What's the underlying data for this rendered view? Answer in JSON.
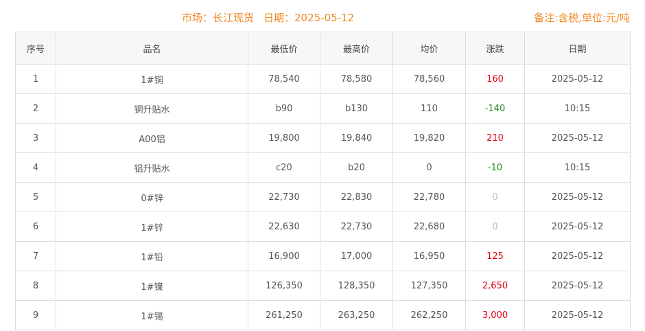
{
  "header": {
    "market": "市场：长江现货",
    "date": "日期：2025-05-12",
    "note": "备注:含税,单位:元/吨"
  },
  "colors": {
    "title": "#f08a24",
    "up": "#e60012",
    "down": "#1e8a1e",
    "flat": "#bbbbbb"
  },
  "table": {
    "columns": [
      "序号",
      "品名",
      "最低价",
      "最高价",
      "均价",
      "涨跌",
      "日期"
    ],
    "rows": [
      {
        "no": "1",
        "name": "1#铜",
        "low": "78,540",
        "high": "78,580",
        "avg": "78,560",
        "change": "160",
        "trend": "up",
        "date": "2025-05-12"
      },
      {
        "no": "2",
        "name": "铜升贴水",
        "low": "b90",
        "high": "b130",
        "avg": "110",
        "change": "-140",
        "trend": "down",
        "date": "10:15"
      },
      {
        "no": "3",
        "name": "A00铝",
        "low": "19,800",
        "high": "19,840",
        "avg": "19,820",
        "change": "210",
        "trend": "up",
        "date": "2025-05-12"
      },
      {
        "no": "4",
        "name": "铝升贴水",
        "low": "c20",
        "high": "b20",
        "avg": "0",
        "change": "-10",
        "trend": "down",
        "date": "10:15"
      },
      {
        "no": "5",
        "name": "0#锌",
        "low": "22,730",
        "high": "22,830",
        "avg": "22,780",
        "change": "0",
        "trend": "flat",
        "date": "2025-05-12"
      },
      {
        "no": "6",
        "name": "1#锌",
        "low": "22,630",
        "high": "22,730",
        "avg": "22,680",
        "change": "0",
        "trend": "flat",
        "date": "2025-05-12"
      },
      {
        "no": "7",
        "name": "1#铅",
        "low": "16,900",
        "high": "17,000",
        "avg": "16,950",
        "change": "125",
        "trend": "up",
        "date": "2025-05-12"
      },
      {
        "no": "8",
        "name": "1#镍",
        "low": "126,350",
        "high": "128,350",
        "avg": "127,350",
        "change": "2,650",
        "trend": "up",
        "date": "2025-05-12"
      },
      {
        "no": "9",
        "name": "1#锡",
        "low": "261,250",
        "high": "263,250",
        "avg": "262,250",
        "change": "3,000",
        "trend": "up",
        "date": "2025-05-12"
      }
    ]
  }
}
